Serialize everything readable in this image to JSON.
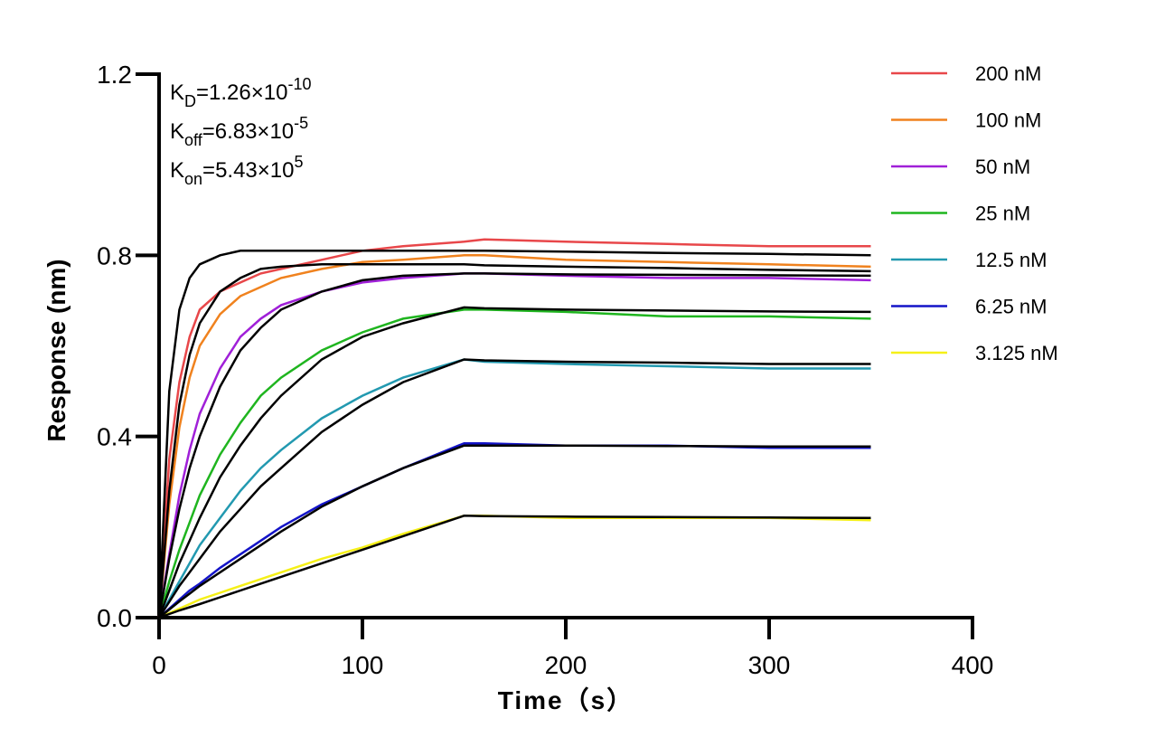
{
  "chart_data": {
    "type": "line",
    "xlabel": "Time（s）",
    "ylabel": "Response (nm)",
    "xlim": [
      0,
      400
    ],
    "xticks": [
      0,
      100,
      200,
      300,
      400
    ],
    "ylim": [
      0,
      1.2
    ],
    "yticks": [
      {
        "value": 0,
        "label": "0.0"
      },
      0.4,
      0.8,
      1.2
    ],
    "annotations": [
      {
        "symbol": "K",
        "subscript": "D",
        "value": "=1.26×10",
        "exponent": "-10"
      },
      {
        "symbol": "K",
        "subscript": "off",
        "value": "=6.83×10",
        "exponent": "-5"
      },
      {
        "symbol": "K",
        "subscript": "on",
        "value": "=5.43×10",
        "exponent": "5"
      }
    ],
    "x": [
      0,
      5,
      10,
      15,
      20,
      30,
      40,
      50,
      60,
      80,
      100,
      120,
      150,
      160,
      200,
      250,
      300,
      350
    ],
    "series": [
      {
        "name": "200 nM",
        "color": "#e8474a",
        "values": [
          0,
          0.35,
          0.52,
          0.62,
          0.68,
          0.72,
          0.74,
          0.76,
          0.77,
          0.79,
          0.81,
          0.82,
          0.83,
          0.835,
          0.83,
          0.825,
          0.82,
          0.82
        ]
      },
      {
        "name": "100 nM",
        "color": "#f0821e",
        "values": [
          0,
          0.25,
          0.42,
          0.53,
          0.6,
          0.67,
          0.71,
          0.73,
          0.75,
          0.77,
          0.785,
          0.79,
          0.8,
          0.8,
          0.79,
          0.785,
          0.78,
          0.775
        ]
      },
      {
        "name": "50 nM",
        "color": "#a020d8",
        "values": [
          0,
          0.14,
          0.27,
          0.37,
          0.45,
          0.55,
          0.62,
          0.66,
          0.69,
          0.72,
          0.74,
          0.75,
          0.76,
          0.76,
          0.755,
          0.75,
          0.75,
          0.745
        ]
      },
      {
        "name": "25 nM",
        "color": "#1fb51f",
        "values": [
          0,
          0.08,
          0.15,
          0.21,
          0.27,
          0.36,
          0.43,
          0.49,
          0.53,
          0.59,
          0.63,
          0.66,
          0.68,
          0.68,
          0.675,
          0.665,
          0.665,
          0.66
        ]
      },
      {
        "name": "12.5 nM",
        "color": "#2299b0",
        "values": [
          0,
          0.04,
          0.08,
          0.12,
          0.16,
          0.22,
          0.28,
          0.33,
          0.37,
          0.44,
          0.49,
          0.53,
          0.57,
          0.565,
          0.56,
          0.555,
          0.55,
          0.55
        ]
      },
      {
        "name": "6.25 nM",
        "color": "#1414c8",
        "values": [
          0,
          0.02,
          0.04,
          0.06,
          0.075,
          0.11,
          0.14,
          0.17,
          0.2,
          0.25,
          0.29,
          0.33,
          0.385,
          0.385,
          0.38,
          0.38,
          0.375,
          0.375
        ]
      },
      {
        "name": "3.125 nM",
        "color": "#f5f018",
        "values": [
          0,
          0.01,
          0.02,
          0.03,
          0.04,
          0.055,
          0.07,
          0.085,
          0.1,
          0.13,
          0.155,
          0.185,
          0.225,
          0.225,
          0.22,
          0.22,
          0.22,
          0.215
        ]
      }
    ],
    "fits": [
      {
        "color": "#000000",
        "values": [
          0,
          0.5,
          0.68,
          0.75,
          0.78,
          0.8,
          0.81,
          0.81,
          0.81,
          0.81,
          0.81,
          0.81,
          0.81,
          0.81,
          0.808,
          0.805,
          0.803,
          0.8
        ]
      },
      {
        "color": "#000000",
        "values": [
          0,
          0.28,
          0.47,
          0.58,
          0.65,
          0.72,
          0.75,
          0.77,
          0.775,
          0.78,
          0.78,
          0.78,
          0.78,
          0.778,
          0.775,
          0.772,
          0.768,
          0.765
        ]
      },
      {
        "color": "#000000",
        "values": [
          0,
          0.13,
          0.24,
          0.33,
          0.4,
          0.51,
          0.59,
          0.64,
          0.68,
          0.72,
          0.745,
          0.755,
          0.76,
          0.76,
          0.758,
          0.757,
          0.756,
          0.755
        ]
      },
      {
        "color": "#000000",
        "values": [
          0,
          0.06,
          0.12,
          0.17,
          0.22,
          0.31,
          0.38,
          0.44,
          0.49,
          0.57,
          0.62,
          0.65,
          0.685,
          0.683,
          0.68,
          0.678,
          0.676,
          0.675
        ]
      },
      {
        "color": "#000000",
        "values": [
          0,
          0.035,
          0.07,
          0.1,
          0.13,
          0.19,
          0.24,
          0.29,
          0.33,
          0.41,
          0.47,
          0.52,
          0.57,
          0.568,
          0.565,
          0.563,
          0.56,
          0.56
        ]
      },
      {
        "color": "#000000",
        "values": [
          0,
          0.018,
          0.036,
          0.053,
          0.07,
          0.1,
          0.13,
          0.16,
          0.19,
          0.245,
          0.29,
          0.33,
          0.38,
          0.38,
          0.38,
          0.379,
          0.378,
          0.378
        ]
      },
      {
        "color": "#000000",
        "values": [
          0,
          0.008,
          0.016,
          0.023,
          0.03,
          0.045,
          0.06,
          0.075,
          0.09,
          0.12,
          0.15,
          0.18,
          0.225,
          0.224,
          0.223,
          0.222,
          0.221,
          0.22
        ]
      }
    ],
    "legend": "right"
  }
}
